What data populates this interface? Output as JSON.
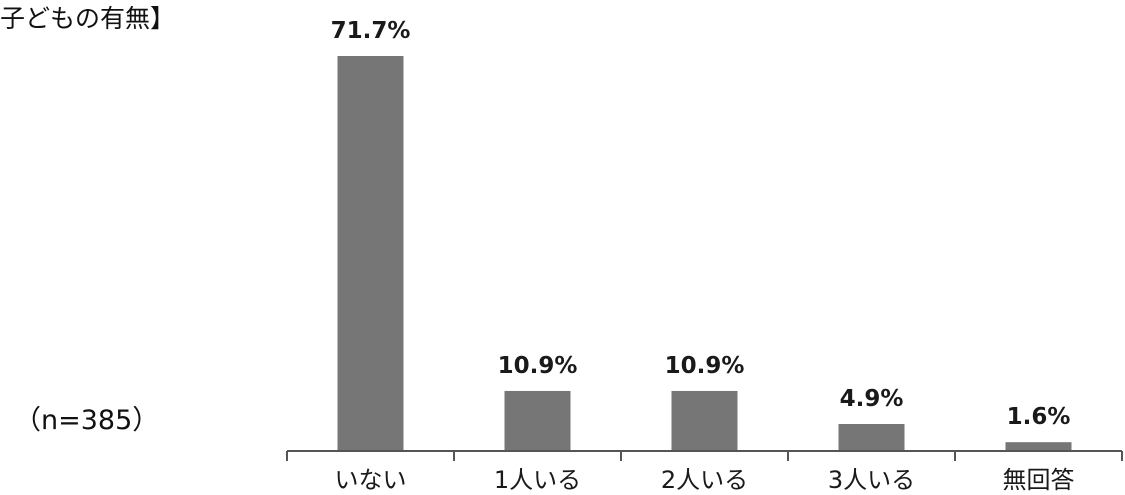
{
  "header": {
    "title": "子どもの有無】",
    "sample_note": "（n=385）"
  },
  "chart_data": {
    "type": "bar",
    "title": "子どもの有無】",
    "categories": [
      "いない",
      "1人いる",
      "2人いる",
      "3人いる",
      "無回答"
    ],
    "values": [
      71.7,
      10.9,
      10.9,
      4.9,
      1.6
    ],
    "value_labels": [
      "71.7%",
      "10.9%",
      "10.9%",
      "4.9%",
      "1.6%"
    ],
    "unit": "%",
    "ylim": [
      0,
      75
    ],
    "grid": false,
    "legend": "none",
    "bar_color": "#767676",
    "axis_color": "#555555"
  }
}
